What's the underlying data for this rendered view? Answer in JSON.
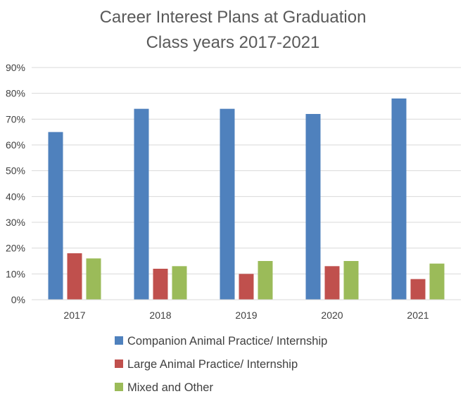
{
  "chart_data": {
    "type": "bar",
    "title": "Career Interest Plans at Graduation",
    "subtitle": "Class years 2017-2021",
    "categories": [
      "2017",
      "2018",
      "2019",
      "2020",
      "2021"
    ],
    "series": [
      {
        "name": "Companion Animal Practice/ Internship",
        "values": [
          65,
          74,
          74,
          72,
          78
        ],
        "color": "#4F81BD"
      },
      {
        "name": "Large Animal Practice/ Internship",
        "values": [
          18,
          12,
          10,
          13,
          8
        ],
        "color": "#C0504D"
      },
      {
        "name": "Mixed and Other",
        "values": [
          16,
          13,
          15,
          15,
          14
        ],
        "color": "#9BBB59"
      }
    ],
    "ylim": [
      0,
      90
    ],
    "y_ticks": [
      "0%",
      "10%",
      "20%",
      "30%",
      "40%",
      "50%",
      "60%",
      "70%",
      "80%",
      "90%"
    ],
    "grid": true,
    "legend_position": "bottom",
    "xlabel": "",
    "ylabel": ""
  }
}
